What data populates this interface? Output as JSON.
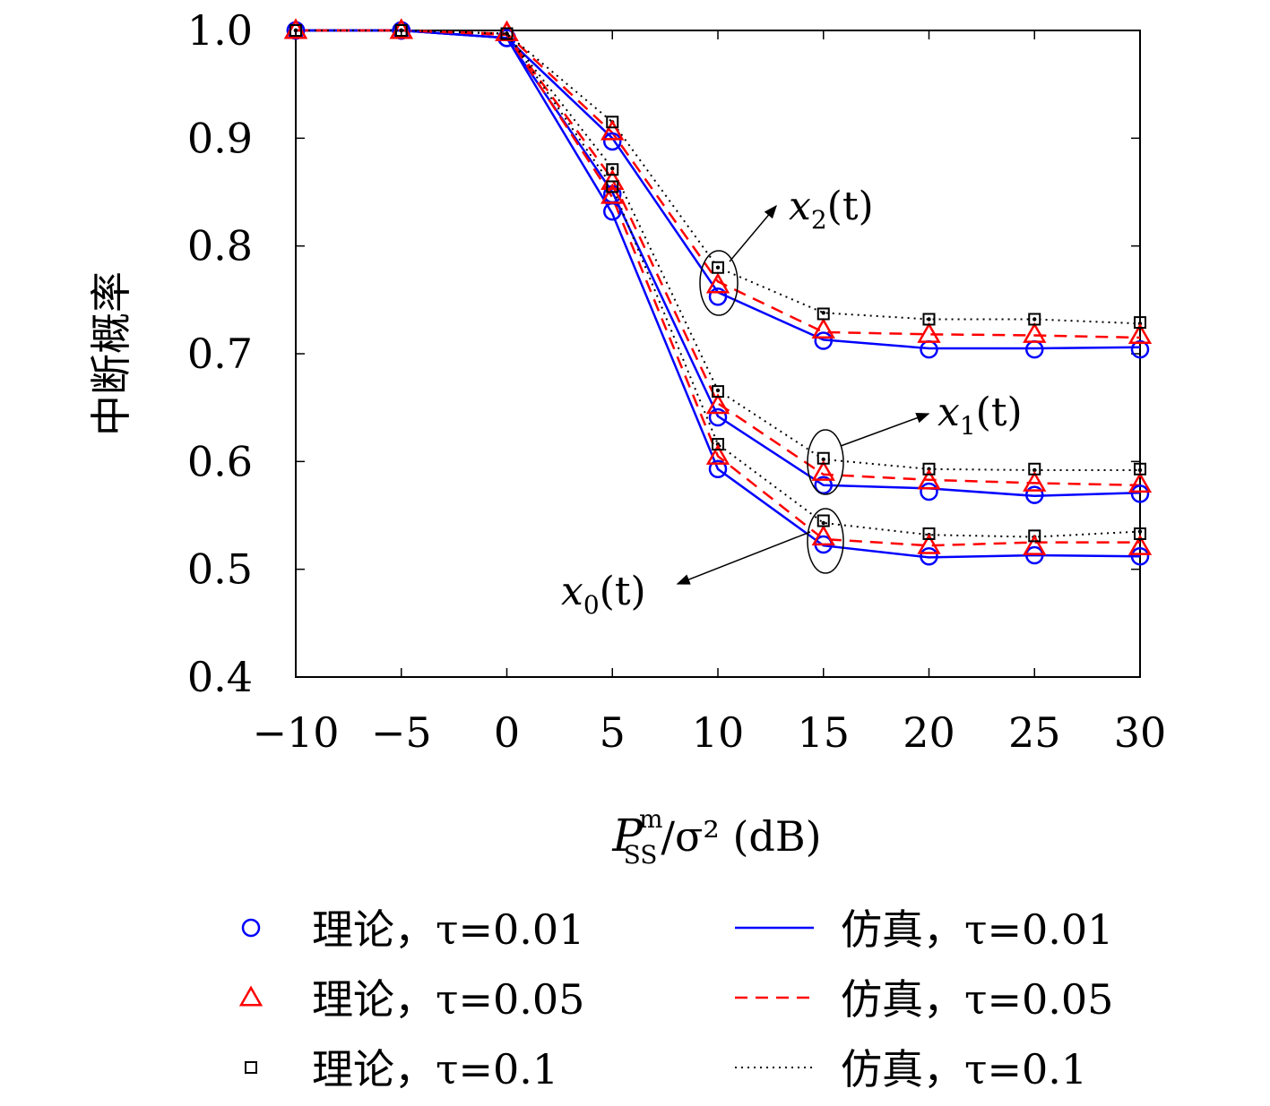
{
  "chart_data": {
    "type": "line",
    "ylabel": "中断概率",
    "xlabel": {
      "main": "P",
      "sup": "m",
      "sub": "SS",
      "rest": "/σ² (dB)"
    },
    "xlim": [
      -10,
      30
    ],
    "ylim": [
      0.4,
      1.0
    ],
    "xticks": [
      -10,
      -5,
      0,
      5,
      10,
      15,
      20,
      25,
      30
    ],
    "xtick_labels": [
      "−10",
      "−5",
      "0",
      "5",
      "10",
      "15",
      "20",
      "25",
      "30"
    ],
    "yticks": [
      0.4,
      0.5,
      0.6,
      0.7,
      0.8,
      0.9,
      1.0
    ],
    "ytick_labels": [
      "0.4",
      "0.5",
      "0.6",
      "0.7",
      "0.8",
      "0.9",
      "1.0"
    ],
    "x": [
      -10,
      -5,
      0,
      5,
      10,
      15,
      20,
      25,
      30
    ],
    "colors": {
      "tau001": "#0000ff",
      "tau005": "#ff0000",
      "tau01": "#000000"
    },
    "groups": [
      {
        "label": "x2(t)",
        "series": [
          {
            "tau": "0.01",
            "sim": [
              1.0,
              1.0,
              0.993,
              0.9,
              0.757,
              0.713,
              0.705,
              0.705,
              0.706
            ],
            "theory": [
              1.0,
              1.0,
              0.993,
              0.897,
              0.753,
              0.712,
              0.704,
              0.704,
              0.704
            ]
          },
          {
            "tau": "0.05",
            "sim": [
              1.0,
              1.0,
              0.997,
              0.905,
              0.767,
              0.72,
              0.718,
              0.717,
              0.715
            ],
            "theory": [
              1.0,
              1.0,
              0.998,
              0.906,
              0.764,
              0.722,
              0.718,
              0.718,
              0.717
            ]
          },
          {
            "tau": "0.1",
            "sim": [
              1.0,
              1.0,
              0.997,
              0.915,
              0.78,
              0.738,
              0.732,
              0.732,
              0.728
            ],
            "theory": [
              1.0,
              1.0,
              0.997,
              0.915,
              0.78,
              0.737,
              0.732,
              0.732,
              0.729
            ]
          }
        ]
      },
      {
        "label": "x1(t)",
        "series": [
          {
            "tau": "0.01",
            "sim": [
              1.0,
              1.0,
              0.993,
              0.85,
              0.642,
              0.578,
              0.575,
              0.568,
              0.571
            ],
            "theory": [
              1.0,
              1.0,
              0.993,
              0.848,
              0.641,
              0.578,
              0.572,
              0.569,
              0.57
            ]
          },
          {
            "tau": "0.05",
            "sim": [
              1.0,
              1.0,
              0.996,
              0.862,
              0.654,
              0.588,
              0.583,
              0.58,
              0.578
            ],
            "theory": [
              1.0,
              1.0,
              0.998,
              0.86,
              0.652,
              0.59,
              0.582,
              0.58,
              0.579
            ]
          },
          {
            "tau": "0.1",
            "sim": [
              1.0,
              1.0,
              0.997,
              0.872,
              0.666,
              0.602,
              0.593,
              0.592,
              0.592
            ],
            "theory": [
              1.0,
              1.0,
              0.997,
              0.871,
              0.665,
              0.603,
              0.593,
              0.593,
              0.593
            ]
          }
        ]
      },
      {
        "label": "x0(t)",
        "series": [
          {
            "tau": "0.01",
            "sim": [
              1.0,
              1.0,
              0.993,
              0.83,
              0.593,
              0.522,
              0.511,
              0.513,
              0.512
            ],
            "theory": [
              1.0,
              1.0,
              0.993,
              0.832,
              0.593,
              0.523,
              0.512,
              0.513,
              0.512
            ]
          },
          {
            "tau": "0.05",
            "sim": [
              1.0,
              1.0,
              0.996,
              0.845,
              0.605,
              0.528,
              0.522,
              0.525,
              0.525
            ],
            "theory": [
              1.0,
              1.0,
              0.998,
              0.847,
              0.605,
              0.53,
              0.522,
              0.521,
              0.521
            ]
          },
          {
            "tau": "0.1",
            "sim": [
              1.0,
              1.0,
              0.997,
              0.855,
              0.616,
              0.543,
              0.532,
              0.53,
              0.535
            ],
            "theory": [
              1.0,
              1.0,
              0.997,
              0.855,
              0.616,
              0.545,
              0.533,
              0.531,
              0.533
            ]
          }
        ]
      }
    ],
    "legend": {
      "placement": "bottom",
      "entries": [
        {
          "kind": "marker",
          "shape": "circle",
          "color": "#0000ff",
          "text": "理论，τ=0.01"
        },
        {
          "kind": "line",
          "style": "solid",
          "color": "#0000ff",
          "text": "仿真，τ=0.01"
        },
        {
          "kind": "marker",
          "shape": "triangle",
          "color": "#ff0000",
          "text": "理论，τ=0.05"
        },
        {
          "kind": "line",
          "style": "dashed",
          "color": "#ff0000",
          "text": "仿真，τ=0.05"
        },
        {
          "kind": "marker",
          "shape": "square",
          "color": "#000000",
          "text": "理论，τ=0.1"
        },
        {
          "kind": "line",
          "style": "dotted",
          "color": "#000000",
          "text": "仿真，τ=0.1"
        }
      ]
    },
    "annotations": [
      {
        "var": "x",
        "sub": "2",
        "rest": "(t)"
      },
      {
        "var": "x",
        "sub": "1",
        "rest": "(t)"
      },
      {
        "var": "x",
        "sub": "0",
        "rest": "(t)"
      }
    ]
  }
}
